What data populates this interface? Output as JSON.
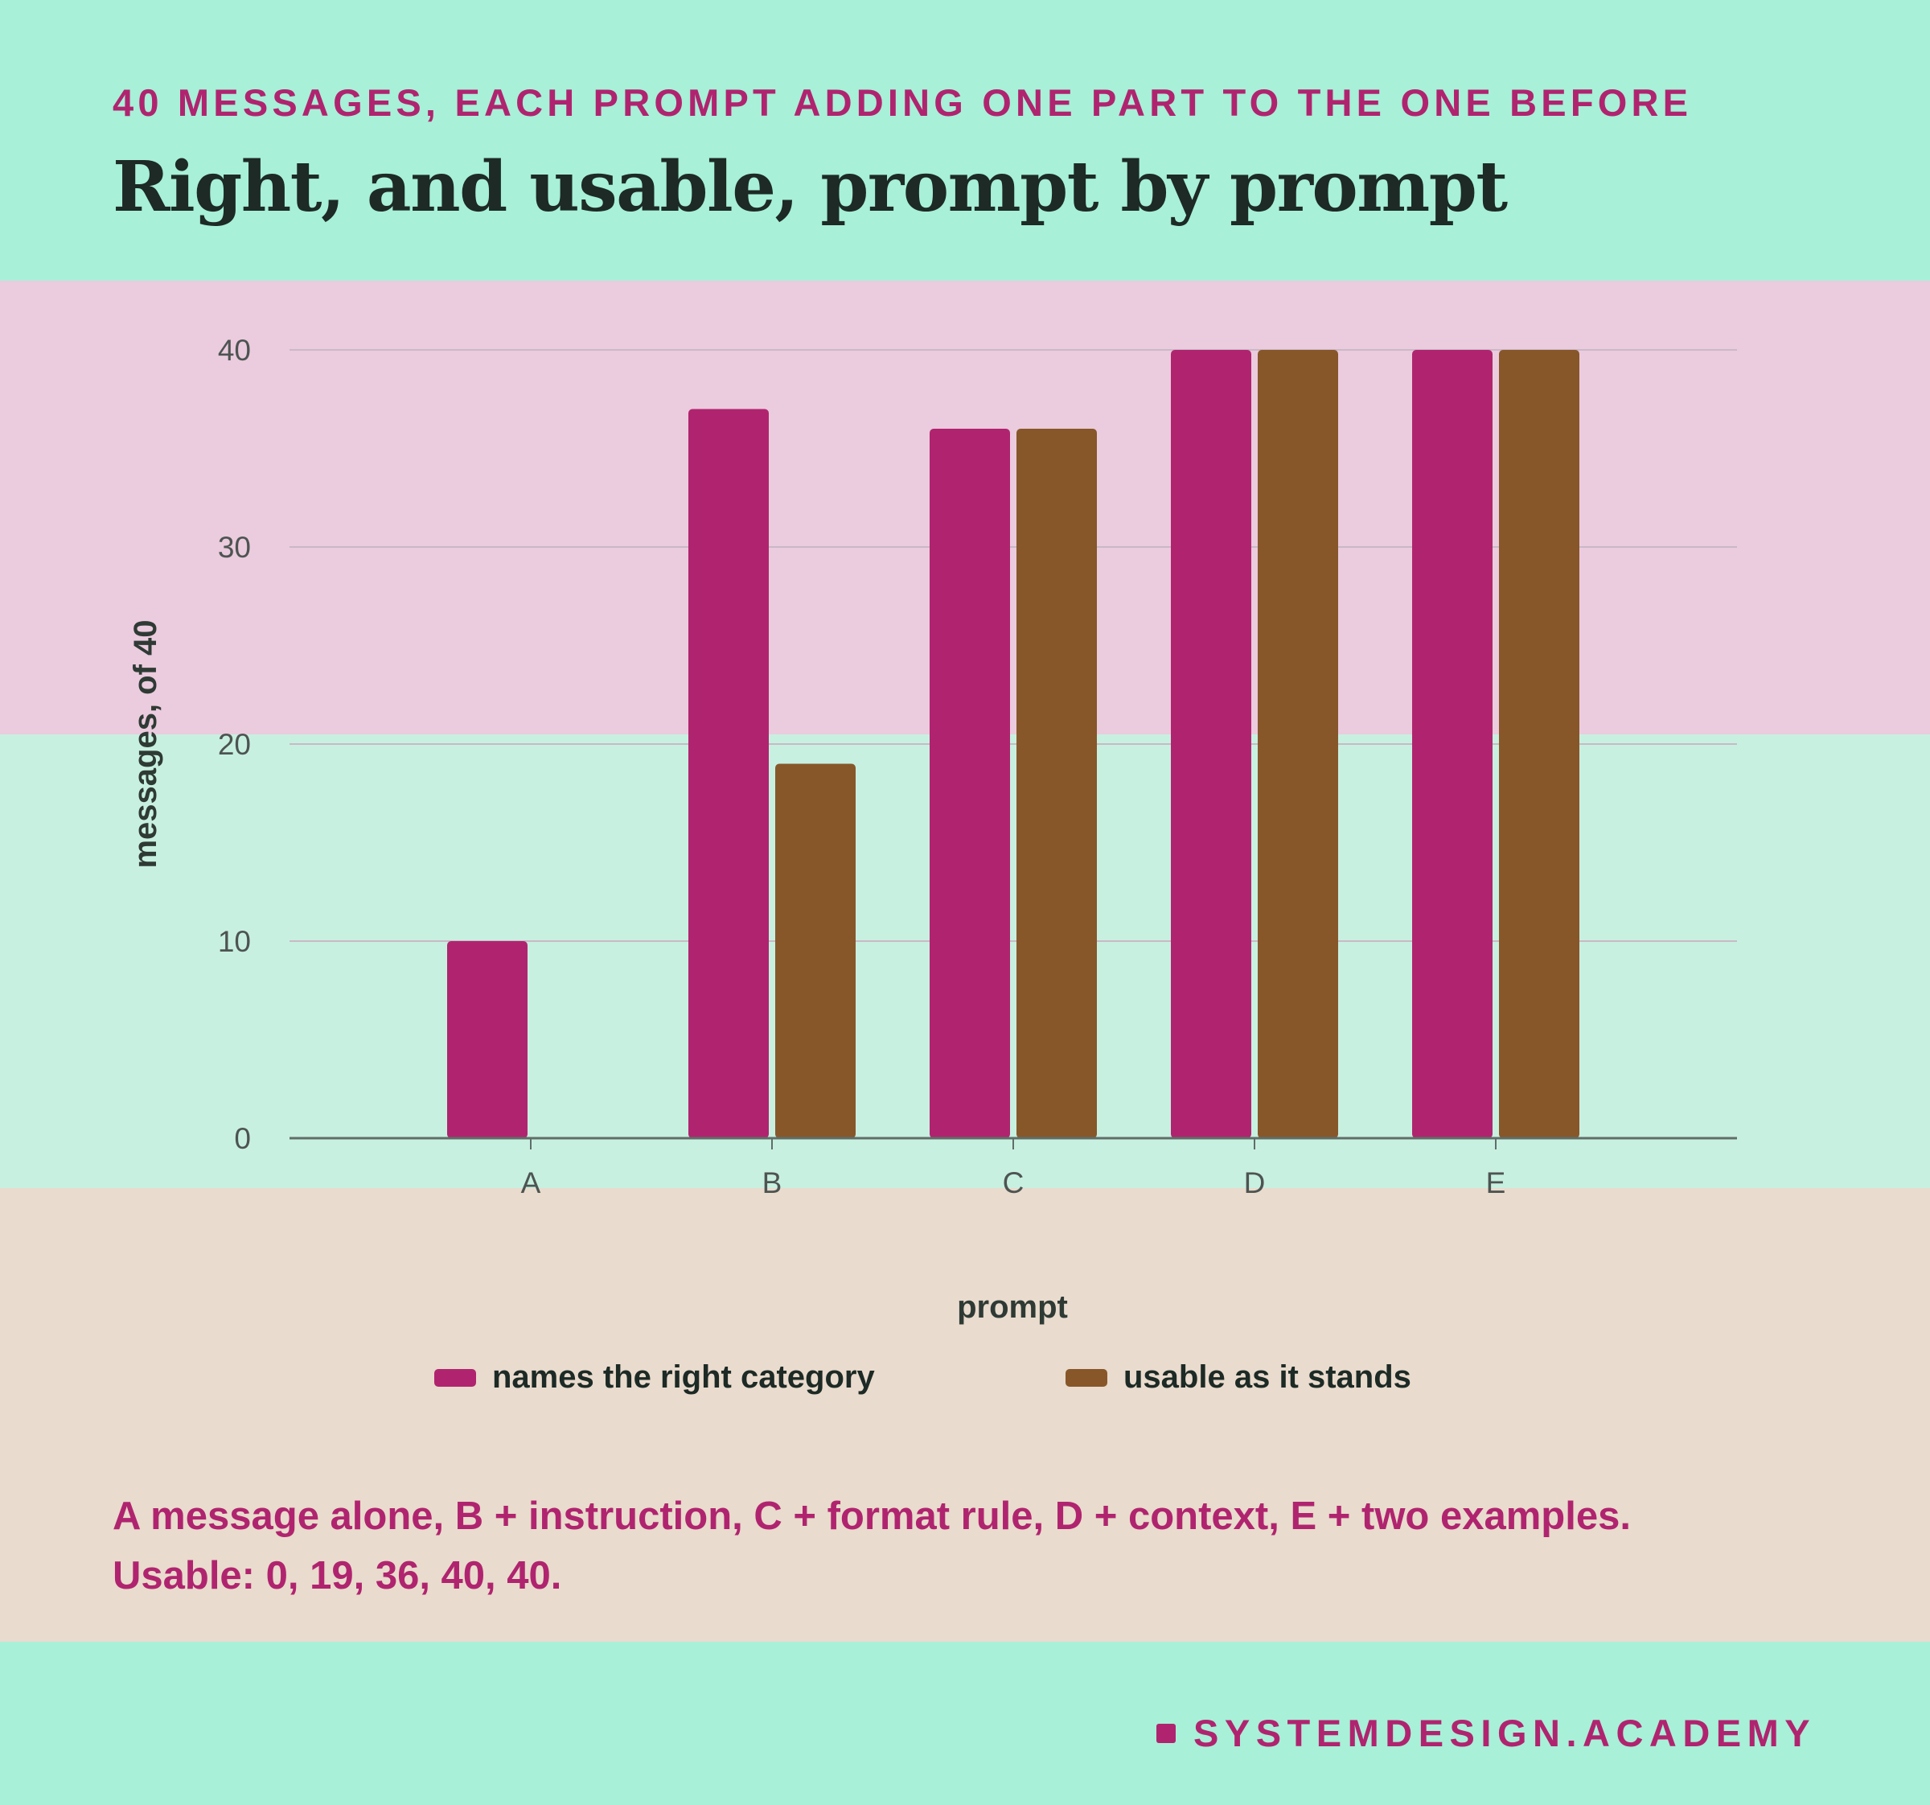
{
  "header": {
    "eyebrow": "40 MESSAGES, EACH PROMPT ADDING ONE PART TO THE ONE BEFORE",
    "title": "Right, and usable, prompt by prompt"
  },
  "colors": {
    "right_category": "#b0246f",
    "usable": "#87572a",
    "axis": "#5f6e68",
    "grid": "#c9b9c6"
  },
  "chart_data": {
    "type": "bar",
    "categories": [
      "A",
      "B",
      "C",
      "D",
      "E"
    ],
    "series": [
      {
        "name": "names the right category",
        "values": [
          10,
          37,
          36,
          40,
          40
        ]
      },
      {
        "name": "usable as it stands",
        "values": [
          0,
          19,
          36,
          40,
          40
        ]
      }
    ],
    "xlabel": "prompt",
    "ylabel": "messages, of 40",
    "ylim": [
      0,
      40
    ],
    "yticks": [
      0,
      10,
      20,
      30,
      40
    ],
    "grid": true,
    "legend": "bottom"
  },
  "caption": {
    "line1": "A message alone, B + instruction, C + format rule, D + context, E + two examples.",
    "line2": "Usable: 0, 19, 36, 40, 40."
  },
  "footer": {
    "brand": "SYSTEMDESIGN.ACADEMY"
  }
}
